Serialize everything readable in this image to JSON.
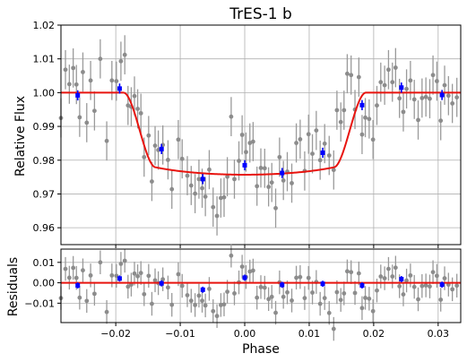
{
  "chart_data": [
    {
      "type": "scatter",
      "title": "TrES-1 b",
      "xlabel": "",
      "ylabel": "Relative Flux",
      "xlim": [
        -0.0285,
        0.0335
      ],
      "ylim": [
        0.955,
        1.02
      ],
      "yticks": [
        0.96,
        0.97,
        0.98,
        0.99,
        1.0,
        1.01,
        1.02
      ],
      "ytick_labels": [
        "0.96",
        "0.97",
        "0.98",
        "0.99",
        "1.00",
        "1.01",
        "1.02"
      ],
      "xticks": [
        -0.02,
        -0.01,
        0.0,
        0.01,
        0.02,
        0.03
      ],
      "grid": true,
      "colors": {
        "data": "#8c8c8c",
        "binned": "#0000ff",
        "model": "#e8140f"
      },
      "data": {
        "name": "",
        "x": [
          -0.0285,
          -0.0278,
          -0.0272,
          -0.0266,
          -0.0261,
          -0.0256,
          -0.0251,
          -0.0245,
          -0.0239,
          -0.0233,
          -0.0224,
          -0.0214,
          -0.0206,
          -0.0199,
          -0.0192,
          -0.0186,
          -0.0181,
          -0.0176,
          -0.0171,
          -0.0166,
          -0.0161,
          -0.0156,
          -0.0149,
          -0.0144,
          -0.0139,
          -0.0134,
          -0.0127,
          -0.0119,
          -0.0113,
          -0.0103,
          -0.0097,
          -0.0089,
          -0.0083,
          -0.0077,
          -0.0071,
          -0.0066,
          -0.0061,
          -0.0055,
          -0.0049,
          -0.0043,
          -0.0037,
          -0.0032,
          -0.0027,
          -0.0021,
          -0.0016,
          -0.0009,
          -0.0004,
          0.0002,
          0.0008,
          0.0013,
          0.0019,
          0.0025,
          0.0031,
          0.0037,
          0.0042,
          0.0048,
          0.0054,
          0.006,
          0.0066,
          0.0073,
          0.008,
          0.0086,
          0.0093,
          0.0099,
          0.0105,
          0.0111,
          0.0117,
          0.0124,
          0.0131,
          0.0138,
          0.0143,
          0.0149,
          0.0154,
          0.0159,
          0.0165,
          0.0171,
          0.0177,
          0.0182,
          0.0187,
          0.0193,
          0.0199,
          0.0205,
          0.0211,
          0.0217,
          0.0223,
          0.0229,
          0.0234,
          0.024,
          0.0246,
          0.0251,
          0.0257,
          0.0263,
          0.0269,
          0.0275,
          0.0281,
          0.0287,
          0.0292,
          0.0298,
          0.0304,
          0.031,
          0.0316,
          0.0322,
          0.0329
        ],
        "y": [
          0.9925,
          1.0068,
          1.0025,
          1.0073,
          1.0024,
          0.9927,
          1.0061,
          0.9911,
          1.0036,
          0.9946,
          1.01,
          0.9857,
          1.0036,
          1.0034,
          1.0093,
          1.0112,
          0.9962,
          0.9958,
          0.999,
          0.9952,
          0.9939,
          0.9809,
          0.9873,
          0.9737,
          0.9843,
          0.983,
          0.9845,
          0.9801,
          0.9714,
          0.9861,
          0.9804,
          0.9754,
          0.9725,
          0.9701,
          0.9744,
          0.9717,
          0.9692,
          0.9772,
          0.9661,
          0.9635,
          0.9688,
          0.969,
          0.9751,
          0.9929,
          0.9744,
          0.9798,
          0.9875,
          0.9824,
          0.9851,
          0.9855,
          0.9723,
          0.9777,
          0.9776,
          0.9721,
          0.9734,
          0.9658,
          0.9809,
          0.974,
          0.9766,
          0.9732,
          0.9851,
          0.9862,
          0.9768,
          0.9877,
          0.9819,
          0.9888,
          0.98,
          0.9849,
          0.9814,
          0.9771,
          0.9948,
          0.9913,
          0.9948,
          1.0056,
          1.0052,
          0.995,
          1.0046,
          0.9876,
          0.9926,
          0.9922,
          0.9861,
          0.9962,
          1.0031,
          1.0022,
          1.0068,
          1.0031,
          1.0074,
          0.9983,
          0.9943,
          1.0011,
          1.0036,
          0.998,
          0.9919,
          0.9984,
          0.9987,
          0.9982,
          1.0052,
          1.0034,
          0.9917,
          1.0022,
          0.9991,
          0.9968,
          0.9986
        ],
        "yerr": 0.0058
      },
      "binned": {
        "name": "",
        "x": [
          -0.0259,
          -0.0194,
          -0.0129,
          -0.0065,
          0.0,
          0.0058,
          0.0121,
          0.0182,
          0.0243,
          0.0306
        ],
        "y": [
          0.9992,
          1.0012,
          0.9833,
          0.9744,
          0.9785,
          0.9762,
          0.9822,
          0.9963,
          1.0015,
          0.9993
        ],
        "yerr": 0.0015
      },
      "model": {
        "name": "",
        "baseline": 1.0,
        "depth": 0.0243,
        "t_contact_1": -0.0188,
        "t_contact_2": -0.0138,
        "t_contact_3": 0.0138,
        "t_contact_4": 0.0188
      }
    },
    {
      "type": "scatter",
      "title": "",
      "xlabel": "Phase",
      "ylabel": "Residuals",
      "xlim": [
        -0.0285,
        0.0335
      ],
      "ylim": [
        -0.0195,
        0.0165
      ],
      "yticks": [
        -0.01,
        0.0,
        0.01
      ],
      "ytick_labels": [
        "−0.01",
        "0.00",
        "0.01"
      ],
      "xticks": [
        -0.02,
        -0.01,
        0.0,
        0.01,
        0.02,
        0.03
      ],
      "xtick_labels": [
        "−0.02",
        "−0.01",
        "0.00",
        "0.01",
        "0.02",
        "0.03"
      ],
      "grid": true,
      "data": {
        "name": "",
        "x": [
          -0.0285,
          -0.0278,
          -0.0272,
          -0.0266,
          -0.0261,
          -0.0256,
          -0.0251,
          -0.0245,
          -0.0239,
          -0.0233,
          -0.0224,
          -0.0214,
          -0.0206,
          -0.0199,
          -0.0192,
          -0.0186,
          -0.0181,
          -0.0176,
          -0.0171,
          -0.0166,
          -0.0161,
          -0.0156,
          -0.0149,
          -0.0144,
          -0.0139,
          -0.0134,
          -0.0127,
          -0.0119,
          -0.0113,
          -0.0103,
          -0.0097,
          -0.0089,
          -0.0083,
          -0.0077,
          -0.0071,
          -0.0066,
          -0.0061,
          -0.0055,
          -0.0049,
          -0.0043,
          -0.0037,
          -0.0032,
          -0.0027,
          -0.0021,
          -0.0016,
          -0.0009,
          -0.0004,
          0.0002,
          0.0008,
          0.0013,
          0.0019,
          0.0025,
          0.0031,
          0.0037,
          0.0042,
          0.0048,
          0.0054,
          0.006,
          0.0066,
          0.0073,
          0.008,
          0.0086,
          0.0093,
          0.0099,
          0.0105,
          0.0111,
          0.0117,
          0.0124,
          0.0131,
          0.0138,
          0.0143,
          0.0149,
          0.0154,
          0.0159,
          0.0165,
          0.0171,
          0.0177,
          0.0182,
          0.0187,
          0.0193,
          0.0199,
          0.0205,
          0.0211,
          0.0217,
          0.0223,
          0.0229,
          0.0234,
          0.024,
          0.0246,
          0.0251,
          0.0257,
          0.0263,
          0.0269,
          0.0275,
          0.0281,
          0.0287,
          0.0292,
          0.0298,
          0.0304,
          0.031,
          0.0316,
          0.0322,
          0.0329
        ],
        "y": [
          -0.0075,
          0.0068,
          0.0025,
          0.0073,
          0.0024,
          -0.0073,
          0.0061,
          -0.0089,
          0.0036,
          -0.0054,
          0.01,
          -0.0143,
          0.0036,
          0.0034,
          0.0093,
          0.0108,
          -0.0019,
          -0.0009,
          0.0045,
          0.0032,
          0.0048,
          -0.0056,
          0.0034,
          -0.0103,
          0.0012,
          -0.0002,
          0.0017,
          -0.0023,
          -0.0108,
          0.0042,
          -0.0015,
          -0.0061,
          -0.0088,
          -0.0109,
          -0.0063,
          -0.0088,
          -0.0111,
          -0.003,
          -0.0139,
          -0.0163,
          -0.0109,
          -0.0106,
          -0.0044,
          0.0133,
          -0.0052,
          0.0002,
          0.0079,
          0.0028,
          0.0055,
          0.006,
          -0.0073,
          -0.0021,
          -0.0024,
          -0.008,
          -0.0069,
          -0.0147,
          0.0002,
          -0.0069,
          -0.0047,
          -0.0087,
          0.0025,
          0.0028,
          -0.0075,
          0.0024,
          -0.0048,
          0.0004,
          -0.0103,
          -0.0075,
          -0.0148,
          -0.0226,
          -0.0046,
          -0.0084,
          -0.0052,
          0.0056,
          0.0052,
          -0.005,
          0.0046,
          -0.0124,
          -0.0074,
          -0.0078,
          -0.0139,
          -0.0038,
          0.0031,
          0.0022,
          0.0068,
          0.0031,
          0.0074,
          -0.0017,
          -0.0057,
          0.0011,
          0.0036,
          -0.002,
          -0.0081,
          -0.0016,
          -0.0013,
          -0.0018,
          0.0052,
          0.0034,
          -0.0083,
          0.0022,
          -0.0009,
          -0.0032,
          -0.0014
        ],
        "yerr": 0.0058
      },
      "binned": {
        "name": "",
        "x": [
          -0.0259,
          -0.0194,
          -0.0129,
          -0.0065,
          0.0,
          0.0058,
          0.0121,
          0.0182,
          0.0243,
          0.0306
        ],
        "y": [
          -0.0013,
          0.0021,
          -0.0003,
          -0.0034,
          0.0025,
          -0.001,
          -0.0005,
          -0.0013,
          0.0018,
          -0.0009
        ],
        "yerr": 0.0015
      },
      "model": {
        "name": "",
        "value": 0.0
      }
    }
  ]
}
